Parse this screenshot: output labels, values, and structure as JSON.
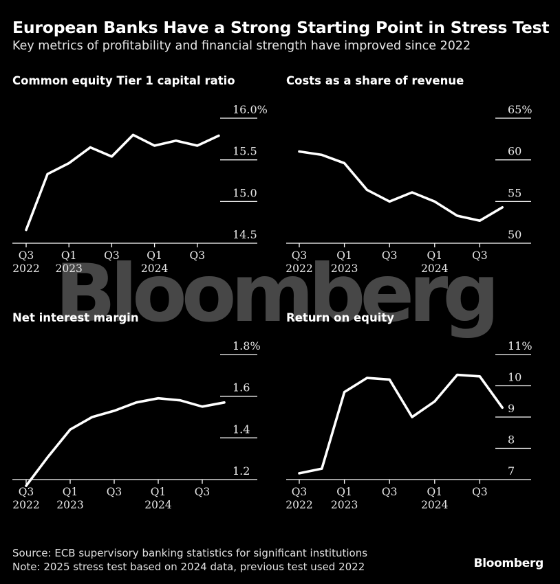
{
  "header": {
    "title": "European Banks Have a Strong Starting Point in Stress Test",
    "subtitle": "Key metrics of profitability and financial strength have improved since 2022"
  },
  "footer": {
    "source": "Source: ECB supervisory banking statistics for significant institutions",
    "note": "Note: 2025 stress test based on 2024 data, previous test used 2022"
  },
  "brand": "Bloomberg",
  "watermark": "Bloomberg",
  "colors": {
    "background": "#000000",
    "line": "#ffffff",
    "axis": "#ffffff"
  },
  "chart_data": [
    {
      "type": "line",
      "title": "Common equity Tier 1 capital ratio",
      "x": [
        "Q3 2022",
        "Q4 2022",
        "Q1 2023",
        "Q2 2023",
        "Q3 2023",
        "Q4 2023",
        "Q1 2024",
        "Q2 2024",
        "Q3 2024",
        "Q4 2024"
      ],
      "values": [
        14.66,
        15.33,
        15.46,
        15.65,
        15.54,
        15.8,
        15.67,
        15.73,
        15.67,
        15.79
      ],
      "yticks": [
        14.5,
        15.0,
        15.5,
        16.0
      ],
      "ytick_labels": [
        "14.5",
        "15.0",
        "15.5",
        "16.0%"
      ],
      "ylim": [
        14.5,
        16.0
      ],
      "xtick_labels": [
        {
          "q": "Q3",
          "y": "2022"
        },
        {
          "q": "Q1",
          "y": "2023"
        },
        {
          "q": "Q3",
          "y": ""
        },
        {
          "q": "Q1",
          "y": "2024"
        },
        {
          "q": "Q3",
          "y": ""
        }
      ],
      "xtick_positions": [
        0,
        2,
        4,
        6,
        8
      ]
    },
    {
      "type": "line",
      "title": "Costs as a share of revenue",
      "x": [
        "Q3 2022",
        "Q4 2022",
        "Q1 2023",
        "Q2 2023",
        "Q3 2023",
        "Q4 2023",
        "Q1 2024",
        "Q2 2024",
        "Q3 2024",
        "Q4 2024"
      ],
      "values": [
        61.0,
        60.6,
        59.6,
        56.4,
        55.0,
        56.1,
        55.0,
        53.3,
        52.7,
        54.3
      ],
      "yticks": [
        50,
        55,
        60,
        65
      ],
      "ytick_labels": [
        "50",
        "55",
        "60",
        "65%"
      ],
      "ylim": [
        50,
        65
      ],
      "xtick_labels": [
        {
          "q": "Q3",
          "y": "2022"
        },
        {
          "q": "Q1",
          "y": "2023"
        },
        {
          "q": "Q3",
          "y": ""
        },
        {
          "q": "Q1",
          "y": "2024"
        },
        {
          "q": "Q3",
          "y": ""
        }
      ],
      "xtick_positions": [
        0,
        2,
        4,
        6,
        8
      ]
    },
    {
      "type": "line",
      "title": "Net interest margin",
      "x": [
        "Q3 2022",
        "Q4 2022",
        "Q1 2023",
        "Q2 2023",
        "Q3 2023",
        "Q4 2023",
        "Q1 2024",
        "Q2 2024",
        "Q3 2024",
        "Q4 2024"
      ],
      "values": [
        1.17,
        1.31,
        1.44,
        1.5,
        1.53,
        1.57,
        1.59,
        1.58,
        1.55,
        1.57
      ],
      "yticks": [
        1.2,
        1.4,
        1.6,
        1.8
      ],
      "ytick_labels": [
        "1.2",
        "1.4",
        "1.6",
        "1.8%"
      ],
      "ylim": [
        1.2,
        1.8
      ],
      "xtick_labels": [
        {
          "q": "Q3",
          "y": "2022"
        },
        {
          "q": "Q1",
          "y": "2023"
        },
        {
          "q": "Q3",
          "y": ""
        },
        {
          "q": "Q1",
          "y": "2024"
        },
        {
          "q": "Q3",
          "y": ""
        }
      ],
      "xtick_positions": [
        0,
        2,
        4,
        6,
        8
      ]
    },
    {
      "type": "line",
      "title": "Return on equity",
      "x": [
        "Q3 2022",
        "Q4 2022",
        "Q1 2023",
        "Q2 2023",
        "Q3 2023",
        "Q4 2023",
        "Q1 2024",
        "Q2 2024",
        "Q3 2024",
        "Q4 2024"
      ],
      "values": [
        7.2,
        7.35,
        9.8,
        10.25,
        10.2,
        9.0,
        9.5,
        10.35,
        10.3,
        9.3
      ],
      "yticks": [
        7,
        8,
        9,
        10,
        11
      ],
      "ytick_labels": [
        "7",
        "8",
        "9",
        "10",
        "11%"
      ],
      "ylim": [
        7,
        11
      ],
      "xtick_labels": [
        {
          "q": "Q3",
          "y": "2022"
        },
        {
          "q": "Q1",
          "y": "2023"
        },
        {
          "q": "Q3",
          "y": ""
        },
        {
          "q": "Q1",
          "y": "2024"
        },
        {
          "q": "Q3",
          "y": ""
        }
      ],
      "xtick_positions": [
        0,
        2,
        4,
        6,
        8
      ]
    }
  ]
}
